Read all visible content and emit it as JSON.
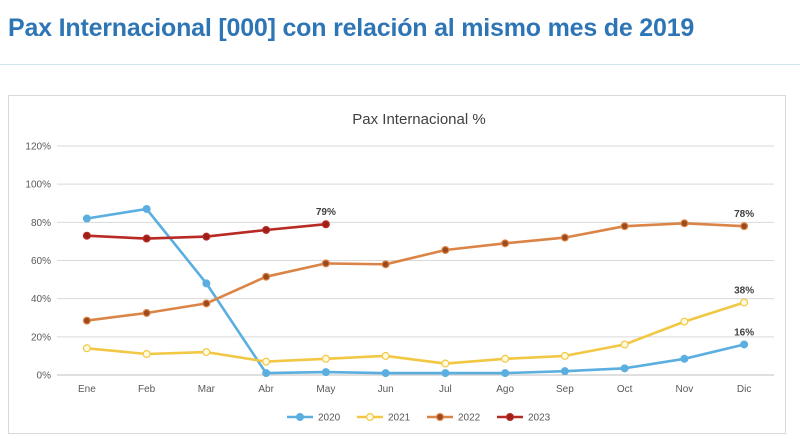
{
  "header": {
    "title": "Pax Internacional [000] con relación al mismo mes de 2019"
  },
  "colors": {
    "title": "#2e75b6",
    "grid": "#d9d9d9",
    "axis": "#bfbfbf"
  },
  "chart_data": {
    "type": "line",
    "title": "Pax Internacional %",
    "categories": [
      "Ene",
      "Feb",
      "Mar",
      "Abr",
      "May",
      "Jun",
      "Jul",
      "Ago",
      "Sep",
      "Oct",
      "Nov",
      "Dic"
    ],
    "y_ticks": [
      "0%",
      "20%",
      "40%",
      "60%",
      "80%",
      "100%",
      "120%"
    ],
    "ylim": [
      0,
      120
    ],
    "grid": "horizontal",
    "legend_position": "bottom",
    "series": [
      {
        "name": "2020",
        "color": "#5aaee0",
        "marker_fill": "#5aaee0",
        "values": [
          82,
          87,
          48,
          1,
          1.5,
          1,
          1,
          1,
          2,
          3.5,
          8.5,
          16
        ]
      },
      {
        "name": "2021",
        "color": "#f2c744",
        "marker_fill": "#fffbe0",
        "values": [
          14,
          11,
          12,
          7,
          8.5,
          10,
          6,
          8.5,
          10,
          16,
          28,
          38
        ]
      },
      {
        "name": "2022",
        "color": "#db8447",
        "marker_fill": "#9a4a1c",
        "values": [
          28.5,
          32.5,
          37.5,
          51.5,
          58.5,
          58,
          65.5,
          69,
          72,
          78,
          79.5,
          78
        ]
      },
      {
        "name": "2023",
        "color": "#b82a24",
        "marker_fill": "#9e1f1a",
        "values": [
          73,
          71.5,
          72.5,
          76,
          79,
          null,
          null,
          null,
          null,
          null,
          null,
          null
        ]
      }
    ],
    "annotations": [
      {
        "text": "79%",
        "series": 3,
        "index": 4
      },
      {
        "text": "78%",
        "series": 2,
        "index": 11
      },
      {
        "text": "38%",
        "series": 1,
        "index": 11
      },
      {
        "text": "16%",
        "series": 0,
        "index": 11
      }
    ]
  }
}
